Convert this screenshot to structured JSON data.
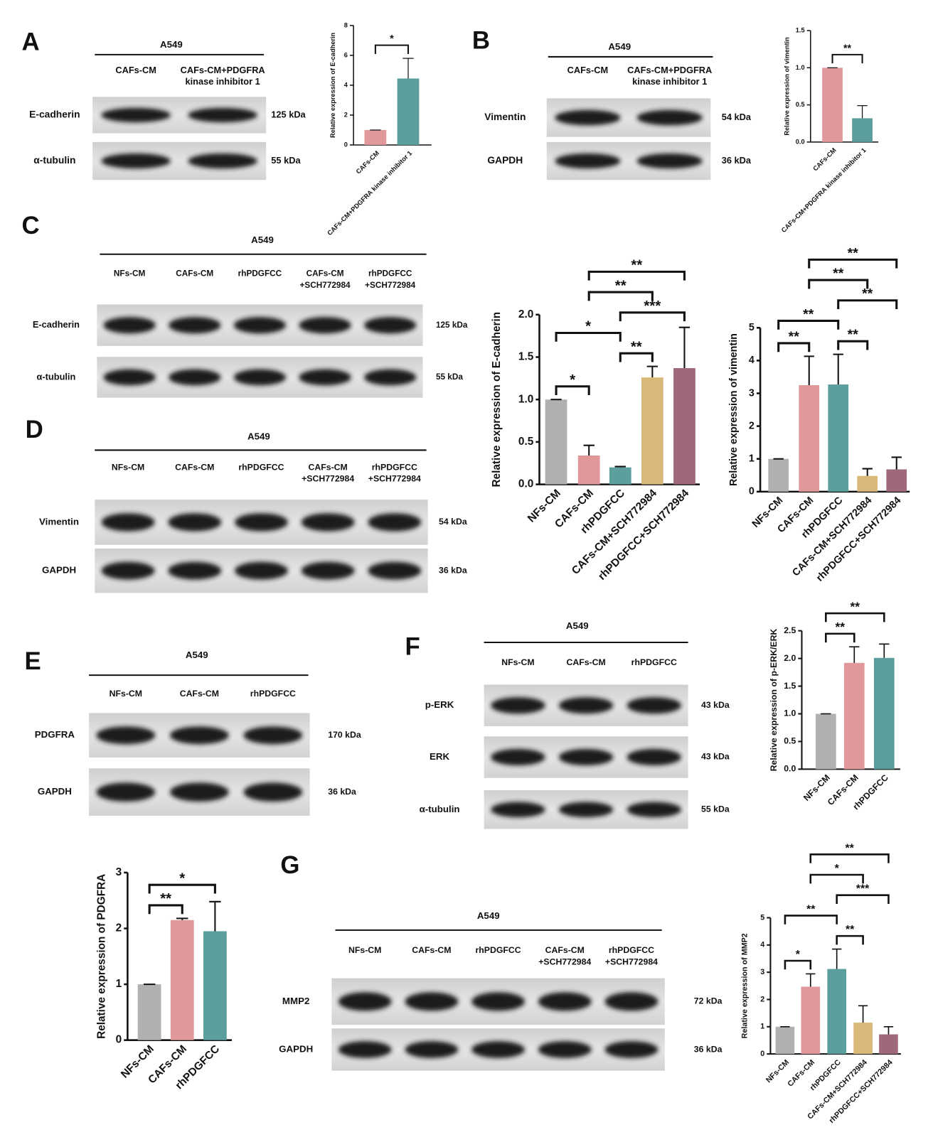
{
  "blots": [
    {
      "panel": "A",
      "cell_line": "A549",
      "lanes": [
        [
          "CAFs-CM"
        ],
        [
          "CAFs-CM+PDGFRA",
          "kinase inhibitor 1"
        ]
      ],
      "rows": [
        {
          "protein": "E-cadherin",
          "size": "125 kDa"
        },
        {
          "protein": "α-tubulin",
          "size": "55 kDa"
        }
      ]
    },
    {
      "panel": "B",
      "cell_line": "A549",
      "lanes": [
        [
          "CAFs-CM"
        ],
        [
          "CAFs-CM+PDGFRA",
          "kinase inhibitor 1"
        ]
      ],
      "rows": [
        {
          "protein": "Vimentin",
          "size": "54 kDa"
        },
        {
          "protein": "GAPDH",
          "size": "36 kDa"
        }
      ]
    },
    {
      "panel": "C",
      "cell_line": "A549",
      "lanes": [
        [
          "NFs-CM"
        ],
        [
          "CAFs-CM"
        ],
        [
          "rhPDGFCC"
        ],
        [
          "CAFs-CM",
          "+SCH772984"
        ],
        [
          "rhPDGFCC",
          "+SCH772984"
        ]
      ],
      "rows": [
        {
          "protein": "E-cadherin",
          "size": "125 kDa"
        },
        {
          "protein": "α-tubulin",
          "size": "55 kDa"
        }
      ]
    },
    {
      "panel": "D",
      "cell_line": "A549",
      "lanes": [
        [
          "NFs-CM"
        ],
        [
          "CAFs-CM"
        ],
        [
          "rhPDGFCC"
        ],
        [
          "CAFs-CM",
          "+SCH772984"
        ],
        [
          "rhPDGFCC",
          "+SCH772984"
        ]
      ],
      "rows": [
        {
          "protein": "Vimentin",
          "size": "54 kDa"
        },
        {
          "protein": "GAPDH",
          "size": "36 kDa"
        }
      ]
    },
    {
      "panel": "E",
      "cell_line": "A549",
      "lanes": [
        [
          "NFs-CM"
        ],
        [
          "CAFs-CM"
        ],
        [
          "rhPDGFCC"
        ]
      ],
      "rows": [
        {
          "protein": "PDGFRA",
          "size": "170 kDa"
        },
        {
          "protein": "GAPDH",
          "size": "36 kDa"
        }
      ]
    },
    {
      "panel": "F",
      "cell_line": "A549",
      "lanes": [
        [
          "NFs-CM"
        ],
        [
          "CAFs-CM"
        ],
        [
          "rhPDGFCC"
        ]
      ],
      "rows": [
        {
          "protein": "p-ERK",
          "size": "43 kDa"
        },
        {
          "protein": "ERK",
          "size": "43 kDa"
        },
        {
          "protein": "α-tubulin",
          "size": "55 kDa"
        }
      ]
    },
    {
      "panel": "G",
      "cell_line": "A549",
      "lanes": [
        [
          "NFs-CM"
        ],
        [
          "CAFs-CM"
        ],
        [
          "rhPDGFCC"
        ],
        [
          "CAFs-CM",
          "+SCH772984"
        ],
        [
          "rhPDGFCC",
          "+SCH772984"
        ]
      ],
      "rows": [
        {
          "protein": "MMP2",
          "size": "72 kDa"
        },
        {
          "protein": "GAPDH",
          "size": "36 kDa"
        }
      ]
    }
  ],
  "chart_data": [
    {
      "type": "bar",
      "ylabel": "Relative expression of E-cadherin",
      "categories": [
        "CAFs-CM",
        "CAFs-CM+PDGFRA kinase inhibitor 1"
      ],
      "values": [
        1,
        4.45
      ],
      "errors": [
        0,
        1.35
      ],
      "colors": [
        "#e0989a",
        "#5b9e9c"
      ],
      "ylim": [
        0,
        8
      ],
      "yticks": [
        0,
        2,
        4,
        6,
        8
      ],
      "brackets": [
        {
          "from": 0,
          "to": 1,
          "label": "*"
        }
      ]
    },
    {
      "type": "bar",
      "ylabel": "Relative expression of vimentin",
      "categories": [
        "CAFs-CM",
        "CAFs-CM+PDGFRA kinase inhibitor 1"
      ],
      "values": [
        1,
        0.32
      ],
      "errors": [
        0,
        0.17
      ],
      "colors": [
        "#e0989a",
        "#5b9e9c"
      ],
      "ylim": [
        0,
        1.5
      ],
      "yticks": [
        {
          "value": 0,
          "label": "0.0"
        },
        0.5,
        {
          "value": 1,
          "label": "1.0"
        },
        1.5
      ],
      "brackets": [
        {
          "from": 0,
          "to": 1,
          "label": "**"
        }
      ]
    },
    {
      "type": "bar",
      "ylabel": "Relative expression of E-cadherin",
      "categories": [
        "NFs-CM",
        "CAFs-CM",
        "rhPDGFCC",
        "CAFs-CM+SCH772984",
        "rhPDGFCC+SCH772984"
      ],
      "values": [
        1,
        0.34,
        0.2,
        1.26,
        1.37
      ],
      "errors": [
        0,
        0.12,
        0.01,
        0.13,
        0.48
      ],
      "colors": [
        "#b0b0b0",
        "#e0989a",
        "#5b9e9c",
        "#d9b97a",
        "#9e6a7a"
      ],
      "ylim": [
        0,
        2
      ],
      "yticks": [
        {
          "value": 0,
          "label": "0.0"
        },
        0.5,
        {
          "value": 1,
          "label": "1.0"
        },
        1.5,
        {
          "value": 2,
          "label": "2.0"
        }
      ],
      "brackets": [
        {
          "from": 0,
          "to": 1,
          "label": "*"
        },
        {
          "from": 2,
          "to": 3,
          "label": "**"
        },
        {
          "from": 0,
          "to": 2,
          "label": "*"
        },
        {
          "from": 2,
          "to": 4,
          "label": "***"
        },
        {
          "from": 1,
          "to": 3,
          "label": "**"
        },
        {
          "from": 1,
          "to": 4,
          "label": "**"
        }
      ]
    },
    {
      "type": "bar",
      "ylabel": "Relative expression of vimentin",
      "categories": [
        "NFs-CM",
        "CAFs-CM",
        "rhPDGFCC",
        "CAFs-CM+SCH772984",
        "rhPDGFCC+SCH772984"
      ],
      "values": [
        1,
        3.25,
        3.27,
        0.48,
        0.68
      ],
      "errors": [
        0,
        0.88,
        0.92,
        0.22,
        0.37
      ],
      "colors": [
        "#b0b0b0",
        "#e0989a",
        "#5b9e9c",
        "#d9b97a",
        "#9e6a7a"
      ],
      "ylim": [
        0,
        5
      ],
      "yticks": [
        0,
        1,
        2,
        3,
        4,
        5
      ],
      "brackets": [
        {
          "from": 0,
          "to": 1,
          "label": "**"
        },
        {
          "from": 2,
          "to": 3,
          "label": "**"
        },
        {
          "from": 0,
          "to": 2,
          "label": "**"
        },
        {
          "from": 2,
          "to": 4,
          "label": "**"
        },
        {
          "from": 1,
          "to": 3,
          "label": "**"
        },
        {
          "from": 1,
          "to": 4,
          "label": "**"
        }
      ]
    },
    {
      "type": "bar",
      "ylabel": "Relative expression of PDGFRA",
      "categories": [
        "NFs-CM",
        "CAFs-CM",
        "rhPDGFCC"
      ],
      "values": [
        1,
        2.15,
        1.95
      ],
      "errors": [
        0,
        0.03,
        0.53
      ],
      "colors": [
        "#b0b0b0",
        "#e0989a",
        "#5b9e9c"
      ],
      "ylim": [
        0,
        3
      ],
      "yticks": [
        0,
        1,
        2,
        3
      ],
      "brackets": [
        {
          "from": 0,
          "to": 1,
          "label": "**"
        },
        {
          "from": 0,
          "to": 2,
          "label": "*"
        }
      ]
    },
    {
      "type": "bar",
      "ylabel": "Relative expression of p-ERK/ERK",
      "categories": [
        "NFs-CM",
        "CAFs-CM",
        "rhPDGFCC"
      ],
      "values": [
        1,
        1.92,
        2.01
      ],
      "errors": [
        0,
        0.29,
        0.25
      ],
      "colors": [
        "#b0b0b0",
        "#e0989a",
        "#5b9e9c"
      ],
      "ylim": [
        0,
        2.5
      ],
      "yticks": [
        {
          "value": 0,
          "label": "0.0"
        },
        0.5,
        {
          "value": 1,
          "label": "1.0"
        },
        1.5,
        {
          "value": 2,
          "label": "2.0"
        },
        2.5
      ],
      "brackets": [
        {
          "from": 0,
          "to": 1,
          "label": "**"
        },
        {
          "from": 0,
          "to": 2,
          "label": "**"
        }
      ]
    },
    {
      "type": "bar",
      "ylabel": "Relative expression of MMP2",
      "categories": [
        "NFs-CM",
        "CAFs-CM",
        "rhPDGFCC",
        "CAFs-CM+SCH772984",
        "rhPDGFCC+SCH772984"
      ],
      "values": [
        1,
        2.47,
        3.12,
        1.15,
        0.72
      ],
      "errors": [
        0,
        0.47,
        0.73,
        0.62,
        0.28
      ],
      "colors": [
        "#b0b0b0",
        "#e0989a",
        "#5b9e9c",
        "#d9b97a",
        "#9e6a7a"
      ],
      "ylim": [
        0,
        5
      ],
      "yticks": [
        0,
        1,
        2,
        3,
        4,
        5
      ],
      "brackets": [
        {
          "from": 0,
          "to": 1,
          "label": "*"
        },
        {
          "from": 2,
          "to": 3,
          "label": "**"
        },
        {
          "from": 0,
          "to": 2,
          "label": "**"
        },
        {
          "from": 2,
          "to": 4,
          "label": "***"
        },
        {
          "from": 1,
          "to": 3,
          "label": "*"
        },
        {
          "from": 1,
          "to": 4,
          "label": "**"
        }
      ]
    }
  ]
}
